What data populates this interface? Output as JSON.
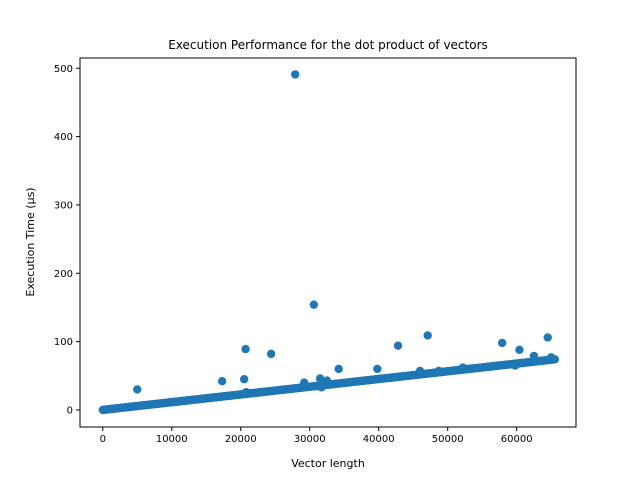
{
  "chart_data": {
    "type": "scatter",
    "title": "Execution Performance for the dot product of vectors",
    "xlabel": "Vector length",
    "ylabel": "Execution Time (µs)",
    "xlim": [
      -3300,
      68600
    ],
    "ylim": [
      -25,
      515
    ],
    "xticks": [
      0,
      10000,
      20000,
      30000,
      40000,
      50000,
      60000
    ],
    "xtick_labels": [
      "0",
      "10000",
      "20000",
      "30000",
      "40000",
      "50000",
      "60000"
    ],
    "yticks": [
      0,
      100,
      200,
      300,
      400,
      500
    ],
    "ytick_labels": [
      "0",
      "100",
      "200",
      "300",
      "400",
      "500"
    ],
    "grid": false,
    "legend": "none",
    "marker_color": "#1f77b4",
    "series": [
      {
        "trend": {
          "x_start": 0,
          "x_end": 65536,
          "x_step": 128,
          "slope_us_per_element": 0.00113
        },
        "outliers": [
          {
            "x": 5000,
            "y": 30
          },
          {
            "x": 17300,
            "y": 42
          },
          {
            "x": 20500,
            "y": 45
          },
          {
            "x": 20700,
            "y": 89
          },
          {
            "x": 20800,
            "y": 26
          },
          {
            "x": 24400,
            "y": 82
          },
          {
            "x": 27900,
            "y": 491
          },
          {
            "x": 29200,
            "y": 40
          },
          {
            "x": 30600,
            "y": 154
          },
          {
            "x": 31500,
            "y": 46
          },
          {
            "x": 31700,
            "y": 33
          },
          {
            "x": 32500,
            "y": 43
          },
          {
            "x": 34200,
            "y": 60
          },
          {
            "x": 39800,
            "y": 60
          },
          {
            "x": 42800,
            "y": 94
          },
          {
            "x": 46000,
            "y": 57
          },
          {
            "x": 47100,
            "y": 109
          },
          {
            "x": 48700,
            "y": 57
          },
          {
            "x": 52200,
            "y": 62
          },
          {
            "x": 57900,
            "y": 98
          },
          {
            "x": 59800,
            "y": 65
          },
          {
            "x": 60400,
            "y": 88
          },
          {
            "x": 62500,
            "y": 79
          },
          {
            "x": 64500,
            "y": 106
          },
          {
            "x": 65000,
            "y": 77
          }
        ]
      }
    ]
  }
}
